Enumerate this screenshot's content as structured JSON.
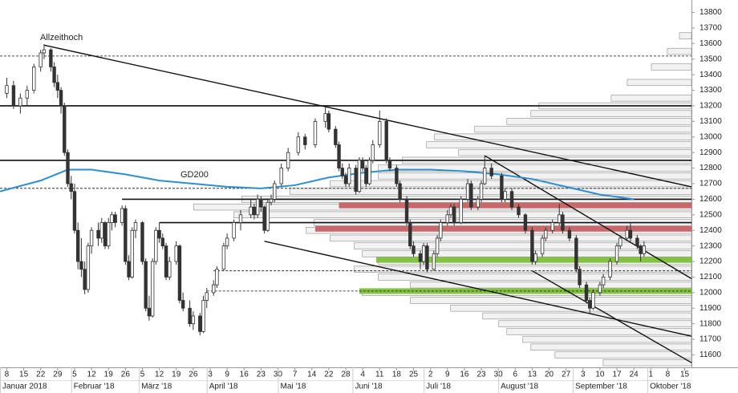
{
  "chart_data": {
    "type": "candlestick",
    "annotations": [
      "Allzeithoch",
      "GD200"
    ],
    "ylim": [
      11520,
      13880
    ],
    "yticks": [
      11600,
      11700,
      11800,
      11900,
      12000,
      12100,
      12200,
      12300,
      12400,
      12500,
      12600,
      12700,
      12800,
      12900,
      13000,
      13100,
      13200,
      13300,
      13400,
      13500,
      13600,
      13700,
      13800
    ],
    "xlim": [
      -2,
      202
    ],
    "xticks": [
      {
        "value": 0,
        "label": "8"
      },
      {
        "value": 5,
        "label": "15"
      },
      {
        "value": 10,
        "label": "22"
      },
      {
        "value": 15,
        "label": "29"
      },
      {
        "value": 20,
        "label": "5"
      },
      {
        "value": 25,
        "label": "12"
      },
      {
        "value": 30,
        "label": "19"
      },
      {
        "value": 35,
        "label": "26"
      },
      {
        "value": 40,
        "label": "5"
      },
      {
        "value": 45,
        "label": "12"
      },
      {
        "value": 50,
        "label": "19"
      },
      {
        "value": 55,
        "label": "26"
      },
      {
        "value": 60,
        "label": "3"
      },
      {
        "value": 65,
        "label": "9"
      },
      {
        "value": 70,
        "label": "16"
      },
      {
        "value": 75,
        "label": "23"
      },
      {
        "value": 80,
        "label": "30"
      },
      {
        "value": 85,
        "label": "7"
      },
      {
        "value": 90,
        "label": "14"
      },
      {
        "value": 95,
        "label": "22"
      },
      {
        "value": 100,
        "label": "28"
      },
      {
        "value": 105,
        "label": "4"
      },
      {
        "value": 110,
        "label": "11"
      },
      {
        "value": 115,
        "label": "18"
      },
      {
        "value": 120,
        "label": "25"
      },
      {
        "value": 125,
        "label": "2"
      },
      {
        "value": 130,
        "label": "9"
      },
      {
        "value": 135,
        "label": "16"
      },
      {
        "value": 140,
        "label": "23"
      },
      {
        "value": 145,
        "label": "30"
      },
      {
        "value": 150,
        "label": "6"
      },
      {
        "value": 155,
        "label": "13"
      },
      {
        "value": 160,
        "label": "20"
      },
      {
        "value": 165,
        "label": "27"
      },
      {
        "value": 170,
        "label": "3"
      },
      {
        "value": 175,
        "label": "10"
      },
      {
        "value": 180,
        "label": "17"
      },
      {
        "value": 185,
        "label": "24"
      },
      {
        "value": 190,
        "label": "1"
      },
      {
        "value": 195,
        "label": "8"
      },
      {
        "value": 200,
        "label": "15"
      }
    ],
    "months": [
      {
        "value": -2,
        "label": "Januar 2018"
      },
      {
        "value": 19,
        "label": "Februar '18"
      },
      {
        "value": 39,
        "label": "März '18"
      },
      {
        "value": 59,
        "label": "April '18"
      },
      {
        "value": 80,
        "label": "Mai '18"
      },
      {
        "value": 102,
        "label": "Juni '18"
      },
      {
        "value": 123,
        "label": "Juli '18"
      },
      {
        "value": 145,
        "label": "August '18"
      },
      {
        "value": 167,
        "label": "September '18"
      },
      {
        "value": 189,
        "label": "Oktober '18"
      }
    ],
    "candles": [
      [
        0,
        13280,
        13380,
        13250,
        13330
      ],
      [
        2,
        13330,
        13360,
        13180,
        13200
      ],
      [
        4,
        13200,
        13280,
        13150,
        13250
      ],
      [
        6,
        13250,
        13330,
        13200,
        13300
      ],
      [
        8,
        13300,
        13470,
        13280,
        13450
      ],
      [
        10,
        13450,
        13560,
        13420,
        13540
      ],
      [
        11,
        13540,
        13597,
        13500,
        13560
      ],
      [
        13,
        13560,
        13570,
        13420,
        13450
      ],
      [
        14,
        13450,
        13480,
        13320,
        13350
      ],
      [
        15,
        13350,
        13400,
        13250,
        13300
      ],
      [
        16,
        13300,
        13320,
        13150,
        13200
      ],
      [
        17,
        13200,
        13220,
        12880,
        12900
      ],
      [
        18,
        12900,
        12920,
        12680,
        12700
      ],
      [
        19,
        12700,
        12750,
        12600,
        12650
      ],
      [
        20,
        12650,
        12700,
        12380,
        12400
      ],
      [
        21,
        12400,
        12450,
        12150,
        12200
      ],
      [
        22,
        12200,
        12350,
        12100,
        12150
      ],
      [
        23,
        12150,
        12200,
        11990,
        12020
      ],
      [
        24,
        12020,
        12320,
        12000,
        12300
      ],
      [
        25,
        12300,
        12420,
        12250,
        12400
      ],
      [
        27,
        12400,
        12450,
        12300,
        12350
      ],
      [
        28,
        12350,
        12480,
        12320,
        12450
      ],
      [
        29,
        12450,
        12460,
        12280,
        12300
      ],
      [
        30,
        12300,
        12480,
        12280,
        12450
      ],
      [
        31,
        12450,
        12520,
        12400,
        12500
      ],
      [
        32,
        12500,
        12520,
        12420,
        12450
      ],
      [
        34,
        12450,
        12560,
        12430,
        12540
      ],
      [
        35,
        12540,
        12560,
        12180,
        12200
      ],
      [
        36,
        12200,
        12240,
        12080,
        12100
      ],
      [
        37,
        12100,
        12420,
        12090,
        12400
      ],
      [
        38,
        12400,
        12470,
        12350,
        12450
      ],
      [
        40,
        12450,
        12460,
        12180,
        12200
      ],
      [
        41,
        12200,
        12220,
        11880,
        11900
      ],
      [
        42,
        11900,
        11980,
        11820,
        11850
      ],
      [
        43,
        11850,
        12220,
        11840,
        12200
      ],
      [
        44,
        12200,
        12420,
        12180,
        12400
      ],
      [
        45,
        12400,
        12450,
        12320,
        12350
      ],
      [
        46,
        12350,
        12380,
        12280,
        12300
      ],
      [
        47,
        12300,
        12320,
        12080,
        12100
      ],
      [
        48,
        12100,
        12230,
        12080,
        12200
      ],
      [
        50,
        12200,
        12330,
        12180,
        12300
      ],
      [
        51,
        12300,
        12310,
        11930,
        11950
      ],
      [
        52,
        11950,
        12000,
        11880,
        11900
      ],
      [
        54,
        11900,
        11950,
        11780,
        11800
      ],
      [
        55,
        11800,
        11880,
        11760,
        11850
      ],
      [
        57,
        11850,
        11870,
        11726,
        11750
      ],
      [
        58,
        11750,
        11980,
        11740,
        11950
      ],
      [
        59,
        11950,
        12030,
        11900,
        12000
      ],
      [
        61,
        12000,
        12080,
        11980,
        12050
      ],
      [
        62,
        12050,
        12170,
        12030,
        12150
      ],
      [
        64,
        12150,
        12320,
        12140,
        12300
      ],
      [
        65,
        12300,
        12380,
        12280,
        12350
      ],
      [
        67,
        12350,
        12470,
        12330,
        12450
      ],
      [
        69,
        12450,
        12530,
        12400,
        12500
      ],
      [
        72,
        12500,
        12600,
        12480,
        12550
      ],
      [
        73,
        12550,
        12570,
        12470,
        12500
      ],
      [
        74,
        12500,
        12630,
        12480,
        12600
      ],
      [
        75,
        12600,
        12620,
        12520,
        12550
      ],
      [
        76,
        12550,
        12560,
        12380,
        12400
      ],
      [
        77,
        12400,
        12600,
        12390,
        12580
      ],
      [
        78,
        12580,
        12630,
        12560,
        12600
      ],
      [
        79,
        12600,
        12720,
        12580,
        12700
      ],
      [
        81,
        12700,
        12830,
        12680,
        12800
      ],
      [
        83,
        12800,
        12930,
        12780,
        12900
      ],
      [
        86,
        12900,
        13030,
        12880,
        13000
      ],
      [
        88,
        13000,
        13020,
        12920,
        12950
      ],
      [
        91,
        12950,
        13120,
        12930,
        13100
      ],
      [
        94,
        13100,
        13190,
        13060,
        13150
      ],
      [
        95,
        13150,
        13170,
        13030,
        13050
      ],
      [
        97,
        13050,
        13070,
        12930,
        12950
      ],
      [
        98,
        12950,
        12970,
        12780,
        12800
      ],
      [
        99,
        12800,
        12830,
        12730,
        12750
      ],
      [
        100,
        12750,
        12770,
        12680,
        12700
      ],
      [
        101,
        12700,
        12830,
        12680,
        12800
      ],
      [
        103,
        12800,
        12820,
        12630,
        12650
      ],
      [
        104,
        12650,
        12870,
        12640,
        12850
      ],
      [
        105,
        12850,
        12870,
        12780,
        12800
      ],
      [
        106,
        12800,
        12820,
        12680,
        12700
      ],
      [
        107,
        12700,
        12870,
        12690,
        12850
      ],
      [
        108,
        12850,
        12980,
        12830,
        12950
      ],
      [
        110,
        12950,
        13170,
        12930,
        13100
      ],
      [
        112,
        13100,
        13120,
        12830,
        12850
      ],
      [
        113,
        12850,
        12870,
        12780,
        12800
      ],
      [
        115,
        12800,
        12820,
        12680,
        12700
      ],
      [
        116,
        12700,
        12720,
        12580,
        12600
      ],
      [
        118,
        12600,
        12620,
        12430,
        12450
      ],
      [
        119,
        12450,
        12470,
        12280,
        12300
      ],
      [
        120,
        12300,
        12330,
        12230,
        12250
      ],
      [
        122,
        12250,
        12270,
        12150,
        12200
      ],
      [
        123,
        12200,
        12320,
        12180,
        12300
      ],
      [
        124,
        12300,
        12320,
        12130,
        12150
      ],
      [
        126,
        12150,
        12270,
        12140,
        12250
      ],
      [
        127,
        12250,
        12370,
        12230,
        12350
      ],
      [
        128,
        12350,
        12470,
        12330,
        12450
      ],
      [
        130,
        12450,
        12530,
        12430,
        12500
      ],
      [
        131,
        12500,
        12570,
        12480,
        12550
      ],
      [
        132,
        12550,
        12570,
        12430,
        12450
      ],
      [
        134,
        12450,
        12620,
        12440,
        12600
      ],
      [
        136,
        12600,
        12730,
        12580,
        12700
      ],
      [
        137,
        12700,
        12720,
        12530,
        12550
      ],
      [
        139,
        12550,
        12620,
        12530,
        12600
      ],
      [
        140,
        12600,
        12720,
        12580,
        12700
      ],
      [
        141,
        12700,
        12880,
        12690,
        12800
      ],
      [
        143,
        12800,
        12830,
        12730,
        12750
      ],
      [
        146,
        12750,
        12770,
        12580,
        12600
      ],
      [
        147,
        12600,
        12670,
        12580,
        12650
      ],
      [
        149,
        12650,
        12670,
        12530,
        12550
      ],
      [
        151,
        12550,
        12570,
        12480,
        12500
      ],
      [
        153,
        12500,
        12510,
        12380,
        12400
      ],
      [
        155,
        12400,
        12420,
        12180,
        12200
      ],
      [
        156,
        12200,
        12270,
        12180,
        12250
      ],
      [
        158,
        12250,
        12370,
        12230,
        12350
      ],
      [
        159,
        12350,
        12420,
        12330,
        12400
      ],
      [
        161,
        12400,
        12470,
        12380,
        12450
      ],
      [
        163,
        12450,
        12570,
        12430,
        12500
      ],
      [
        164,
        12500,
        12520,
        12380,
        12400
      ],
      [
        166,
        12400,
        12420,
        12330,
        12350
      ],
      [
        168,
        12350,
        12370,
        12130,
        12150
      ],
      [
        169,
        12150,
        12170,
        12030,
        12050
      ],
      [
        171,
        12050,
        12070,
        11930,
        11950
      ],
      [
        172,
        11950,
        11970,
        11870,
        11900
      ],
      [
        173,
        11900,
        12020,
        11890,
        12000
      ],
      [
        175,
        12000,
        12070,
        11980,
        12050
      ],
      [
        176,
        12050,
        12120,
        12030,
        12100
      ],
      [
        178,
        12100,
        12220,
        12080,
        12200
      ],
      [
        180,
        12200,
        12320,
        12180,
        12300
      ],
      [
        181,
        12300,
        12370,
        12280,
        12350
      ],
      [
        183,
        12350,
        12430,
        12330,
        12400
      ],
      [
        184,
        12400,
        12450,
        12330,
        12350
      ],
      [
        186,
        12350,
        12370,
        12280,
        12300
      ],
      [
        187,
        12300,
        12310,
        12200,
        12250
      ],
      [
        188,
        12250,
        12330,
        12230,
        12300
      ]
    ],
    "sma": {
      "color": "#2e8fd0",
      "x": [
        -2,
        10,
        18,
        25,
        35,
        45,
        55,
        65,
        75,
        85,
        95,
        105,
        115,
        125,
        135,
        145,
        155,
        165,
        175,
        185
      ],
      "values": [
        12650,
        12720,
        12790,
        12790,
        12760,
        12720,
        12700,
        12680,
        12670,
        12690,
        12740,
        12770,
        12790,
        12790,
        12780,
        12760,
        12730,
        12680,
        12630,
        12600
      ]
    },
    "volume_profile": {
      "color": "#d9d9d9",
      "levels": [
        11550,
        11600,
        11650,
        11700,
        11750,
        11800,
        11850,
        11900,
        11950,
        12000,
        12050,
        12100,
        12150,
        12200,
        12250,
        12300,
        12350,
        12400,
        12450,
        12500,
        12550,
        12600,
        12650,
        12700,
        12750,
        12800,
        12850,
        12900,
        12950,
        13000,
        13050,
        13100,
        13150,
        13200,
        13250,
        13350,
        13450,
        13550,
        13650
      ],
      "values": [
        110,
        170,
        200,
        210,
        230,
        240,
        260,
        300,
        350,
        410,
        350,
        390,
        420,
        390,
        410,
        420,
        450,
        480,
        470,
        570,
        620,
        560,
        500,
        450,
        390,
        390,
        360,
        290,
        330,
        320,
        270,
        230,
        200,
        190,
        100,
        80,
        50,
        30,
        15
      ]
    },
    "hlines": [
      {
        "value": 13200,
        "start": -2,
        "style": "solid"
      },
      {
        "value": 12850,
        "start": -2,
        "style": "solid"
      },
      {
        "value": 12600,
        "start": 34,
        "style": "solid"
      },
      {
        "value": 12450,
        "start": 45,
        "style": "solid"
      },
      {
        "value": 13520,
        "start": -2,
        "style": "dashed"
      },
      {
        "value": 12670,
        "start": -2,
        "style": "dashed"
      },
      {
        "value": 12140,
        "start": 61,
        "style": "dashed"
      },
      {
        "value": 12010,
        "start": 59,
        "style": "dashed"
      }
    ],
    "zones": [
      {
        "value": 12560,
        "start": 98,
        "color": "#c9686a"
      },
      {
        "value": 12410,
        "start": 91,
        "color": "#c9686a"
      },
      {
        "value": 12210,
        "start": 109,
        "color": "#84c341"
      },
      {
        "value": 12010,
        "start": 104,
        "color": "#84c341"
      }
    ],
    "trendlines": [
      {
        "from": [
          11,
          13590
        ],
        "to": [
          202,
          12680
        ]
      },
      {
        "from": [
          76,
          12330
        ],
        "to": [
          202,
          11720
        ]
      },
      {
        "from": [
          141,
          12880
        ],
        "to": [
          202,
          12090
        ]
      },
      {
        "from": [
          155,
          12140
        ],
        "to": [
          202,
          11550
        ]
      }
    ]
  }
}
